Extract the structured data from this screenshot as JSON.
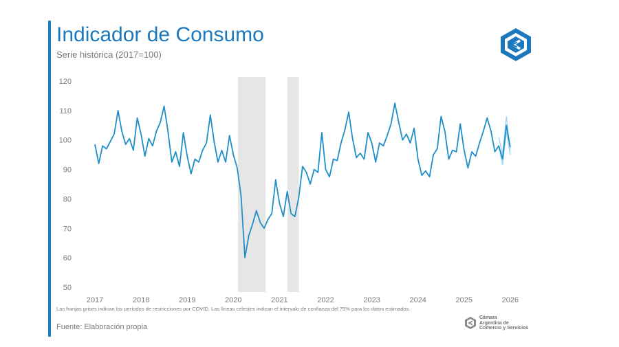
{
  "header": {
    "title": "Indicador de Consumo",
    "subtitle": "Serie histórica (2017=100)"
  },
  "footer": {
    "note": "Las franjas grises indican los períodos de restricciones por COVID. Las líneas celestes indican el intervalo de confianza del 75% para los datos estimados.",
    "source": "Fuente: Elaboración propia",
    "org_name": [
      "Cámara",
      "Argentina de",
      "Comercio y Servicios"
    ]
  },
  "colors": {
    "accent": "#1b78bd",
    "line": "#1e8fc8",
    "band": "#e6e6e6",
    "ci": "#9fd3f2"
  },
  "chart_data": {
    "type": "line",
    "title": "Indicador de Consumo",
    "subtitle": "Serie histórica (2017=100)",
    "xlabel": "",
    "ylabel": "",
    "ylim": [
      50,
      120
    ],
    "xlim": [
      2017.0,
      2026.5
    ],
    "yticks": [
      50,
      60,
      70,
      80,
      90,
      100,
      110,
      120
    ],
    "xticks": [
      "2017",
      "2018",
      "2019",
      "2020",
      "2021",
      "2022",
      "2023",
      "2024",
      "2025",
      "2026"
    ],
    "grid": false,
    "legend": "none",
    "shaded_periods": [
      {
        "from": 2020.1,
        "to": 2020.7
      },
      {
        "from": 2021.17,
        "to": 2021.42
      }
    ],
    "series": [
      {
        "start": 2017.0,
        "step_months": 1,
        "values": [
          98.5,
          92,
          98,
          97,
          99.5,
          102,
          110,
          103,
          98.5,
          100.5,
          96.5,
          107.5,
          102,
          94.5,
          100.5,
          98,
          103,
          106,
          111.5,
          103,
          92.5,
          96,
          91,
          102.5,
          94.5,
          88.5,
          93.5,
          92.5,
          96.5,
          99,
          108.5,
          99.5,
          92.5,
          96.5,
          92.5,
          101.5,
          95,
          90.5,
          81,
          60,
          67.5,
          71.5,
          76,
          72,
          70,
          73,
          75,
          86.5,
          78.5,
          74,
          82.5,
          75,
          74,
          80.5,
          91,
          89,
          85,
          90,
          89,
          102.5,
          90,
          87.5,
          93.5,
          93,
          99,
          103.5,
          109.5,
          100.5,
          94,
          95.5,
          93.5,
          102.5,
          99,
          92.5,
          99,
          98,
          101.5,
          105.5,
          112.5,
          106,
          100,
          102,
          99,
          104,
          93.5,
          88,
          89.5,
          87.5,
          95,
          97,
          108,
          103,
          93.5,
          96.5,
          96,
          105.5,
          96.5,
          90.5,
          96,
          94.5,
          99,
          103,
          107.5,
          103,
          96,
          98,
          93.5,
          105,
          97.5
        ]
      }
    ],
    "confidence_band": {
      "start": 2025.75,
      "upper": [
        101,
        95,
        108,
        96
      ],
      "lower": [
        98,
        91.5,
        103,
        95
      ]
    }
  }
}
